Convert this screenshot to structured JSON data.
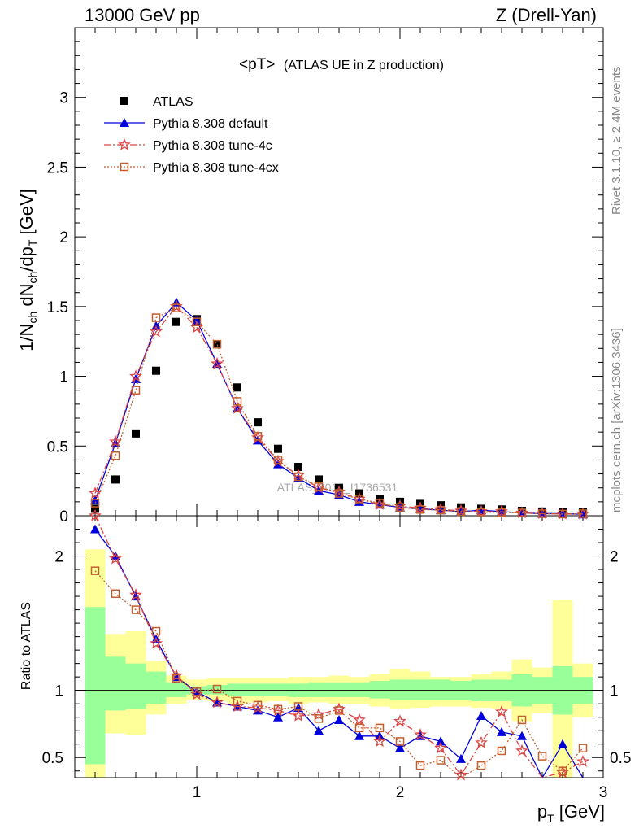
{
  "header": {
    "left": "13000 GeV pp",
    "right": "Z (Drell-Yan)"
  },
  "title": {
    "main": "<pT>",
    "sub": "(ATLAS UE in Z production)"
  },
  "side_text": {
    "top": "Rivet 3.1.10, ≥ 2.4M events",
    "bottom": "mcplots.cern.ch [arXiv:1306.3436]"
  },
  "watermark": "ATLAS_2019_I1736531",
  "legend": [
    {
      "name": "ATLAS",
      "color": "#000000",
      "marker": "square"
    },
    {
      "name": "Pythia 8.308 default",
      "color": "#0000dd",
      "marker": "triangle"
    },
    {
      "name": "Pythia 8.308 tune-4c",
      "color": "#dd4444",
      "marker": "star"
    },
    {
      "name": "Pythia 8.308 tune-4cx",
      "color": "#c06030",
      "marker": "open-square"
    }
  ],
  "axes": {
    "main_ylabel": "1/N_ch dN_ch/dp_T [GeV]",
    "ratio_ylabel": "Ratio to ATLAS",
    "xlabel": "p_T [GeV]"
  },
  "chart_data": [
    {
      "type": "scatter",
      "panel": "main",
      "xlim": [
        0.4,
        3.0
      ],
      "ylim": [
        0,
        3.5
      ],
      "xticks": [
        "1",
        "2",
        "3"
      ],
      "yticks": [
        "0",
        "0.5",
        "1",
        "1.5",
        "2",
        "2.5",
        "3"
      ],
      "x": [
        0.5,
        0.6,
        0.7,
        0.8,
        0.9,
        1.0,
        1.1,
        1.2,
        1.3,
        1.4,
        1.5,
        1.6,
        1.7,
        1.8,
        1.9,
        2.0,
        2.1,
        2.2,
        2.3,
        2.4,
        2.5,
        2.6,
        2.7,
        2.8,
        2.9
      ],
      "series": [
        {
          "name": "ATLAS",
          "values": [
            0.05,
            0.26,
            0.59,
            1.04,
            1.39,
            1.41,
            1.23,
            0.92,
            0.67,
            0.48,
            0.35,
            0.26,
            0.2,
            0.16,
            0.12,
            0.1,
            0.085,
            0.075,
            0.06,
            0.05,
            0.045,
            0.035,
            0.03,
            0.028,
            0.025
          ]
        },
        {
          "name": "Pythia 8.308 default",
          "values": [
            0.11,
            0.52,
            0.98,
            1.36,
            1.53,
            1.4,
            1.09,
            0.77,
            0.54,
            0.37,
            0.27,
            0.18,
            0.15,
            0.1,
            0.08,
            0.06,
            0.05,
            0.04,
            0.03,
            0.04,
            0.03,
            0.02,
            0.015,
            0.015,
            0.01
          ]
        },
        {
          "name": "Pythia 8.308 tune-4c",
          "values": [
            0.16,
            0.53,
            1.0,
            1.32,
            1.5,
            1.35,
            1.09,
            0.77,
            0.56,
            0.39,
            0.29,
            0.2,
            0.17,
            0.12,
            0.08,
            0.07,
            0.055,
            0.045,
            0.035,
            0.03,
            0.03,
            0.02,
            0.015,
            0.012,
            0.012
          ]
        },
        {
          "name": "Pythia 8.308 tune-4cx",
          "values": [
            0.09,
            0.43,
            0.9,
            1.42,
            1.49,
            1.39,
            1.23,
            0.82,
            0.57,
            0.4,
            0.28,
            0.21,
            0.16,
            0.12,
            0.09,
            0.06,
            0.045,
            0.04,
            0.03,
            0.025,
            0.025,
            0.02,
            0.015,
            0.012,
            0.015
          ]
        }
      ]
    },
    {
      "type": "scatter",
      "panel": "ratio",
      "xlim": [
        0.4,
        3.0
      ],
      "ylim": [
        0.35,
        2.3
      ],
      "xticks": [
        "1",
        "2",
        "3"
      ],
      "yticks": [
        "0.5",
        "1",
        "2"
      ],
      "reference_line": 1,
      "x": [
        0.5,
        0.6,
        0.7,
        0.8,
        0.9,
        1.0,
        1.1,
        1.2,
        1.3,
        1.4,
        1.5,
        1.6,
        1.7,
        1.8,
        1.9,
        2.0,
        2.1,
        2.2,
        2.3,
        2.4,
        2.5,
        2.6,
        2.7,
        2.8,
        2.9
      ],
      "band_green": [
        [
          0.45,
          1.62
        ],
        [
          0.85,
          1.25
        ],
        [
          0.86,
          1.2
        ],
        [
          0.9,
          1.14
        ],
        [
          0.95,
          1.06
        ],
        [
          0.97,
          1.03
        ],
        [
          0.97,
          1.04
        ],
        [
          0.96,
          1.05
        ],
        [
          0.96,
          1.05
        ],
        [
          0.96,
          1.05
        ],
        [
          0.95,
          1.05
        ],
        [
          0.95,
          1.06
        ],
        [
          0.95,
          1.06
        ],
        [
          0.95,
          1.06
        ],
        [
          0.94,
          1.07
        ],
        [
          0.93,
          1.08
        ],
        [
          0.93,
          1.08
        ],
        [
          0.93,
          1.08
        ],
        [
          0.93,
          1.07
        ],
        [
          0.92,
          1.08
        ],
        [
          0.92,
          1.08
        ],
        [
          0.88,
          1.12
        ],
        [
          0.9,
          1.1
        ],
        [
          0.82,
          1.18
        ],
        [
          0.9,
          1.1
        ]
      ],
      "band_yellow": [
        [
          0.35,
          2.05
        ],
        [
          0.68,
          1.42
        ],
        [
          0.67,
          1.44
        ],
        [
          0.82,
          1.22
        ],
        [
          0.9,
          1.11
        ],
        [
          0.93,
          1.08
        ],
        [
          0.92,
          1.09
        ],
        [
          0.9,
          1.09
        ],
        [
          0.91,
          1.09
        ],
        [
          0.92,
          1.09
        ],
        [
          0.9,
          1.1
        ],
        [
          0.91,
          1.1
        ],
        [
          0.9,
          1.11
        ],
        [
          0.9,
          1.1
        ],
        [
          0.88,
          1.12
        ],
        [
          0.86,
          1.16
        ],
        [
          0.87,
          1.14
        ],
        [
          0.88,
          1.1
        ],
        [
          0.88,
          1.1
        ],
        [
          0.87,
          1.12
        ],
        [
          0.86,
          1.14
        ],
        [
          0.77,
          1.23
        ],
        [
          0.83,
          1.17
        ],
        [
          0.35,
          1.67
        ],
        [
          0.8,
          1.2
        ]
      ],
      "series": [
        {
          "name": "Pythia 8.308 default",
          "values": [
            2.2,
            2.0,
            1.7,
            1.38,
            1.1,
            0.99,
            0.91,
            0.88,
            0.85,
            0.8,
            0.87,
            0.7,
            0.78,
            0.66,
            0.66,
            0.57,
            0.66,
            0.62,
            0.49,
            0.81,
            0.69,
            0.66,
            0.3,
            0.6,
            0.3
          ]
        },
        {
          "name": "Pythia 8.308 tune-4c",
          "values": [
            2.3,
            1.98,
            1.71,
            1.35,
            1.11,
            0.97,
            0.91,
            0.88,
            0.87,
            0.85,
            0.81,
            0.82,
            0.86,
            0.78,
            0.62,
            0.77,
            0.67,
            0.57,
            0.37,
            0.61,
            0.84,
            0.55,
            0.33,
            0.39,
            0.47
          ]
        },
        {
          "name": "Pythia 8.308 tune-4cx",
          "values": [
            1.89,
            1.72,
            1.6,
            1.44,
            1.09,
            0.99,
            1.01,
            0.92,
            0.89,
            0.86,
            0.88,
            0.79,
            0.85,
            0.72,
            0.72,
            0.62,
            0.44,
            0.48,
            0.3,
            0.44,
            0.55,
            0.78,
            0.51,
            0.4,
            0.57
          ]
        }
      ]
    }
  ]
}
